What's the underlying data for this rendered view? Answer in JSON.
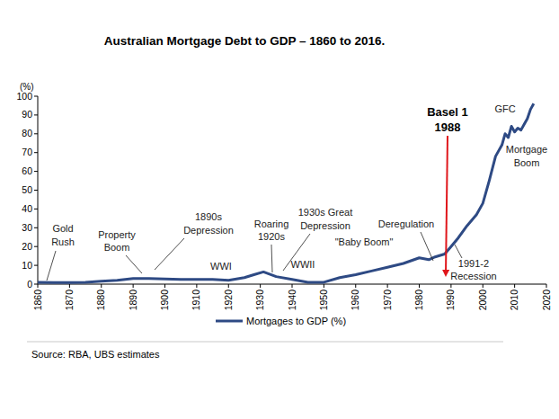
{
  "chart_data": {
    "type": "line",
    "title": "Australian Mortgage Debt to GDP – 1860 to 2016.",
    "y_label": "(%)",
    "source": "Source:  RBA, UBS estimates",
    "x": [
      1860,
      1865,
      1870,
      1875,
      1880,
      1885,
      1890,
      1895,
      1900,
      1905,
      1910,
      1915,
      1920,
      1925,
      1928,
      1931,
      1935,
      1940,
      1945,
      1950,
      1955,
      1960,
      1965,
      1970,
      1975,
      1980,
      1983,
      1985,
      1988,
      1990,
      1992,
      1995,
      1998,
      2000,
      2002,
      2004,
      2006,
      2007,
      2008,
      2009,
      2010,
      2011,
      2012,
      2013,
      2014,
      2015,
      2016
    ],
    "series": [
      {
        "name": "Mortgages to GDP (%)",
        "color": "#2e4a84",
        "values": [
          1,
          0.8,
          0.8,
          1,
          1.5,
          2,
          3,
          3,
          2.8,
          2.5,
          2.5,
          2.5,
          2,
          3.5,
          5,
          6.5,
          4,
          2.5,
          1,
          1,
          3.5,
          5,
          7,
          9,
          11,
          14,
          13,
          14.5,
          16,
          20,
          24,
          31,
          37,
          43,
          55,
          68,
          74,
          80,
          78,
          84,
          81,
          83,
          82,
          85,
          88,
          93,
          96
        ]
      }
    ],
    "xlim": [
      1860,
      2020
    ],
    "xticks": [
      1860,
      1870,
      1880,
      1890,
      1900,
      1910,
      1920,
      1930,
      1940,
      1950,
      1960,
      1970,
      1980,
      1990,
      2000,
      2010,
      2020
    ],
    "ylim": [
      0,
      100
    ],
    "yticks": [
      0,
      10,
      20,
      30,
      40,
      50,
      60,
      70,
      80,
      90,
      100
    ],
    "grid": false,
    "legend": "bottom",
    "annotations": [
      {
        "lines": [
          "Gold",
          "Rush"
        ]
      },
      {
        "lines": [
          "Property",
          "Boom"
        ]
      },
      {
        "lines": [
          "1890s",
          "Depression"
        ]
      },
      {
        "lines": [
          "Roaring",
          "1920s"
        ]
      },
      {
        "lines": [
          "1930s Great",
          "Depression"
        ]
      },
      {
        "lines": [
          "WWI"
        ]
      },
      {
        "lines": [
          "WWII"
        ]
      },
      {
        "lines": [
          "\"Baby Boom\""
        ]
      },
      {
        "lines": [
          "Deregulation"
        ]
      },
      {
        "lines": [
          "Basel 1",
          "1988"
        ],
        "color": "#e0161b"
      },
      {
        "lines": [
          "GFC"
        ]
      },
      {
        "lines": [
          "Mortgage",
          "Boom"
        ]
      },
      {
        "lines": [
          "1991-2",
          "Recession"
        ]
      }
    ]
  }
}
